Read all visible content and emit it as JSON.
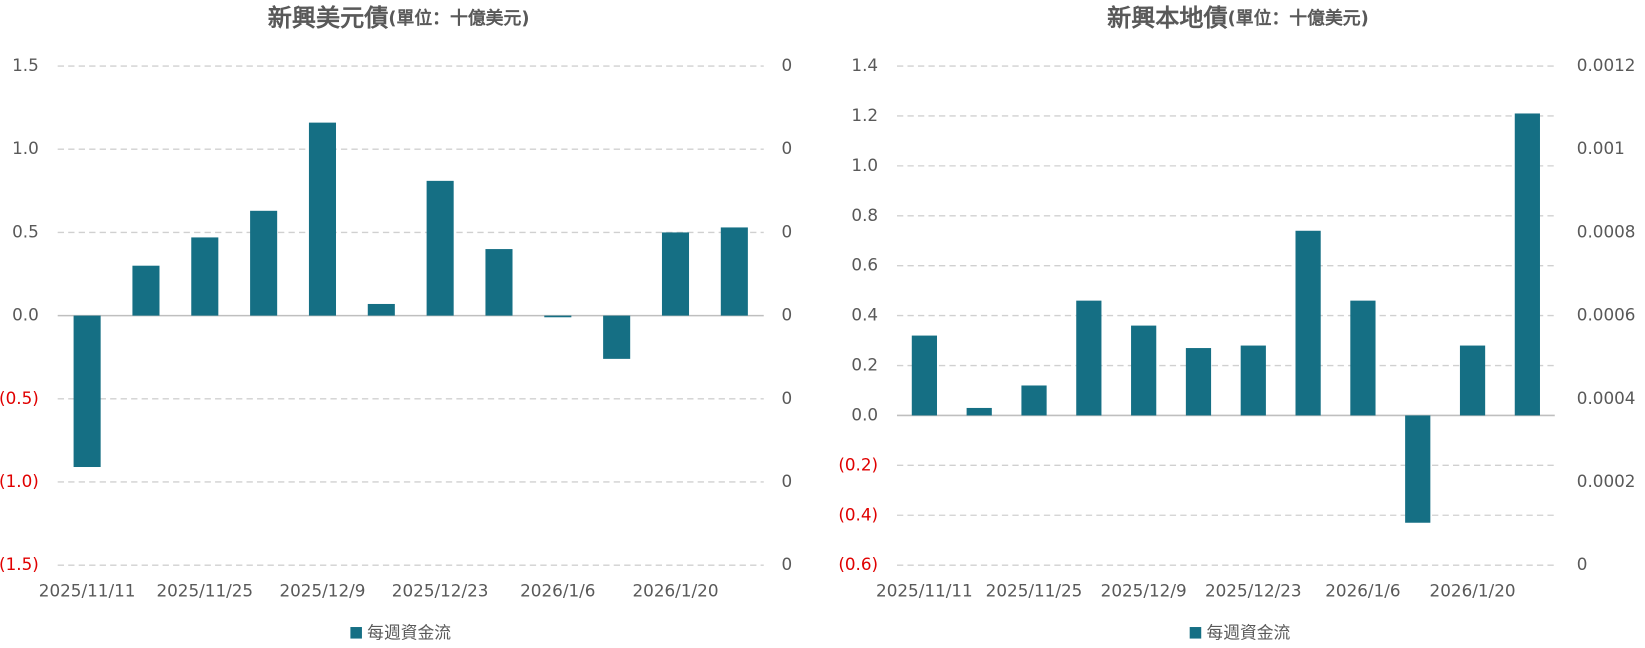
{
  "chart_data": [
    {
      "type": "bar",
      "title": "新興美元債",
      "subtitle": "(單位：十億美元)",
      "categories": [
        "2025/11/11",
        null,
        "2025/11/25",
        null,
        "2025/12/9",
        null,
        "2025/12/23",
        null,
        "2026/1/6",
        null,
        "2026/1/20",
        null
      ],
      "series": [
        {
          "name": "每週資金流",
          "color": "#156f84",
          "values": [
            -0.91,
            0.3,
            0.47,
            0.63,
            1.16,
            0.07,
            0.81,
            0.4,
            -0.01,
            -0.26,
            0.5,
            0.53
          ]
        }
      ],
      "ylim": [
        -1.5,
        1.5
      ],
      "yticks": [
        1.5,
        {
          "value": 1,
          "label": "1.0"
        },
        0.5,
        {
          "value": 0,
          "label": "0.0"
        },
        {
          "value": -0.5,
          "label": "(0.5)"
        },
        {
          "value": -1,
          "label": "(1.0)"
        },
        {
          "value": -1.5,
          "label": "(1.5)"
        }
      ],
      "y2lim": [
        0,
        0.0003
      ],
      "y2ticks": [
        {
          "value": 0.0003,
          "label": "0"
        },
        {
          "value": 0.00025,
          "label": "0"
        },
        {
          "value": 0.0002,
          "label": "0"
        },
        {
          "value": 0.00015,
          "label": "0"
        },
        {
          "value": 0.0001,
          "label": "0"
        },
        {
          "value": 5e-05,
          "label": "0"
        },
        {
          "value": 0,
          "label": "0"
        }
      ],
      "negative_tick_color": "#e00000",
      "grid": true,
      "legend": "bottom"
    },
    {
      "type": "bar",
      "title": "新興本地債",
      "subtitle": "(單位：十億美元)",
      "categories": [
        "2025/11/11",
        null,
        "2025/11/25",
        null,
        "2025/12/9",
        null,
        "2025/12/23",
        null,
        "2026/1/6",
        null,
        "2026/1/20",
        null
      ],
      "series": [
        {
          "name": "每週資金流",
          "color": "#156f84",
          "values": [
            0.32,
            0.03,
            0.12,
            0.46,
            0.36,
            0.27,
            0.28,
            0.74,
            0.46,
            -0.43,
            0.28,
            1.21
          ]
        }
      ],
      "ylim": [
        -0.6,
        1.4
      ],
      "yticks": [
        1.4,
        1.2,
        {
          "value": 1,
          "label": "1.0"
        },
        0.8,
        0.6,
        0.4,
        0.2,
        {
          "value": 0,
          "label": "0.0"
        },
        {
          "value": -0.2,
          "label": "(0.2)"
        },
        {
          "value": -0.4,
          "label": "(0.4)"
        },
        {
          "value": -0.6,
          "label": "(0.6)"
        }
      ],
      "y2lim": [
        0,
        0.0012
      ],
      "y2ticks": [
        0.0012,
        0.001,
        0.0008,
        0.0006,
        0.0004,
        0.0002,
        0
      ],
      "negative_tick_color": "#e00000",
      "grid": true,
      "legend": "bottom"
    }
  ]
}
